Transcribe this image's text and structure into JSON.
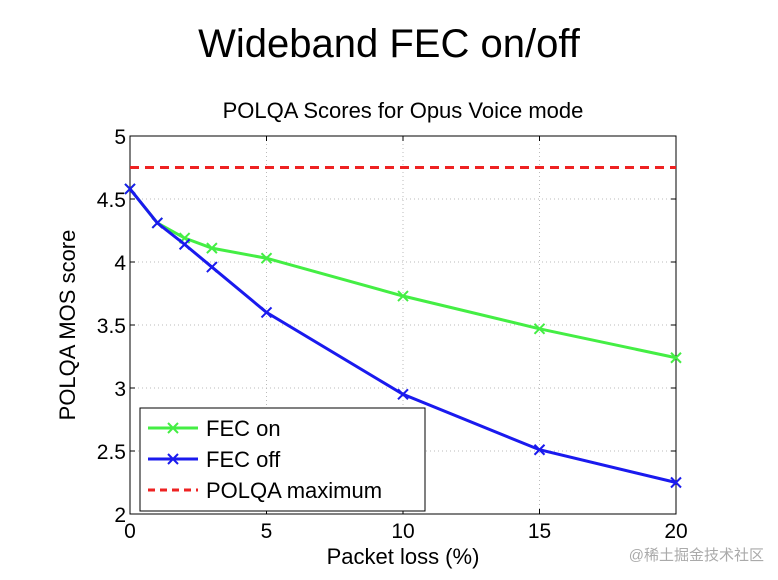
{
  "slide_title": "Wideband FEC on/off",
  "watermark": "@稀土掘金技术社区",
  "chart_data": {
    "type": "line",
    "title": "POLQA Scores for Opus Voice mode",
    "xlabel": "Packet loss (%)",
    "ylabel": "POLQA MOS score",
    "xlim": [
      0,
      20
    ],
    "ylim": [
      2,
      5
    ],
    "xticks": [
      0,
      5,
      10,
      15,
      20
    ],
    "yticks": [
      2,
      2.5,
      3,
      3.5,
      4,
      4.5,
      5
    ],
    "grid": true,
    "legend_position": "bottom-left",
    "series": [
      {
        "name": "FEC on",
        "color": "#44ee44",
        "style": "solid",
        "marker": "x",
        "x": [
          0,
          1,
          2,
          3,
          5,
          10,
          15,
          20
        ],
        "y": [
          4.58,
          4.31,
          4.19,
          4.11,
          4.03,
          3.73,
          3.47,
          3.24
        ]
      },
      {
        "name": "FEC off",
        "color": "#1a1aee",
        "style": "solid",
        "marker": "x",
        "x": [
          0,
          1,
          2,
          3,
          5,
          10,
          15,
          20
        ],
        "y": [
          4.58,
          4.31,
          4.14,
          3.96,
          3.6,
          2.95,
          2.51,
          2.25
        ]
      },
      {
        "name": "POLQA maximum",
        "color": "#ee2222",
        "style": "dashed",
        "marker": "none",
        "x": [
          0,
          20
        ],
        "y": [
          4.75,
          4.75
        ]
      }
    ]
  }
}
